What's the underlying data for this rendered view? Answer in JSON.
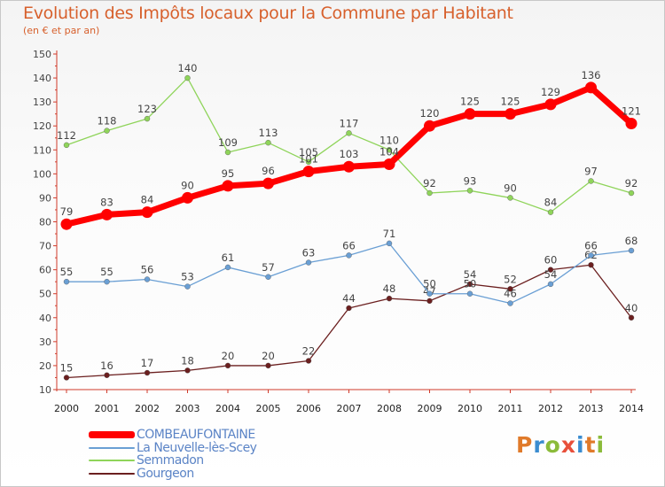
{
  "title": "Evolution des Impôts locaux pour la Commune par Habitant",
  "subtitle": "(en € et par an)",
  "logo": {
    "text": "Proxiti",
    "letters": [
      "P",
      "r",
      "o",
      "x",
      "i",
      "t",
      "i"
    ],
    "colors": [
      "#e07a2a",
      "#3a8cd0",
      "#8bbb3a",
      "#e84f3a",
      "#3a8cd0",
      "#e07a2a",
      "#8bbb3a"
    ]
  },
  "chart_data": {
    "type": "line",
    "x": [
      "2000",
      "2001",
      "2002",
      "2003",
      "2004",
      "2005",
      "2006",
      "2007",
      "2008",
      "2009",
      "2010",
      "2011",
      "2012",
      "2013",
      "2014"
    ],
    "ylim": [
      10,
      150
    ],
    "yticks": [
      10,
      20,
      30,
      40,
      50,
      60,
      70,
      80,
      90,
      100,
      110,
      120,
      130,
      140,
      150
    ],
    "grid": false,
    "legend_position": "bottom-left",
    "series": [
      {
        "name": "Gourgeon",
        "color": "#6b1f1f",
        "values": [
          15,
          16,
          17,
          18,
          20,
          20,
          22,
          44,
          48,
          47,
          54,
          52,
          60,
          62,
          40
        ]
      },
      {
        "name": "Semmadon",
        "color": "#8fd45a",
        "values": [
          112,
          118,
          123,
          140,
          109,
          113,
          105,
          117,
          110,
          92,
          93,
          90,
          84,
          97,
          92
        ]
      },
      {
        "name": "La Neuvelle-lès-Scey",
        "color": "#6a9fd4",
        "values": [
          55,
          55,
          56,
          53,
          61,
          57,
          63,
          66,
          71,
          50,
          50,
          46,
          54,
          66,
          68
        ]
      },
      {
        "name": "COMBEAUFONTAINE",
        "color": "#ff0000",
        "values": [
          79,
          83,
          84,
          90,
          95,
          96,
          101,
          103,
          104,
          120,
          125,
          125,
          129,
          136,
          121
        ]
      }
    ],
    "legend_order": [
      "COMBEAUFONTAINE",
      "La Neuvelle-lès-Scey",
      "Semmadon",
      "Gourgeon"
    ]
  }
}
